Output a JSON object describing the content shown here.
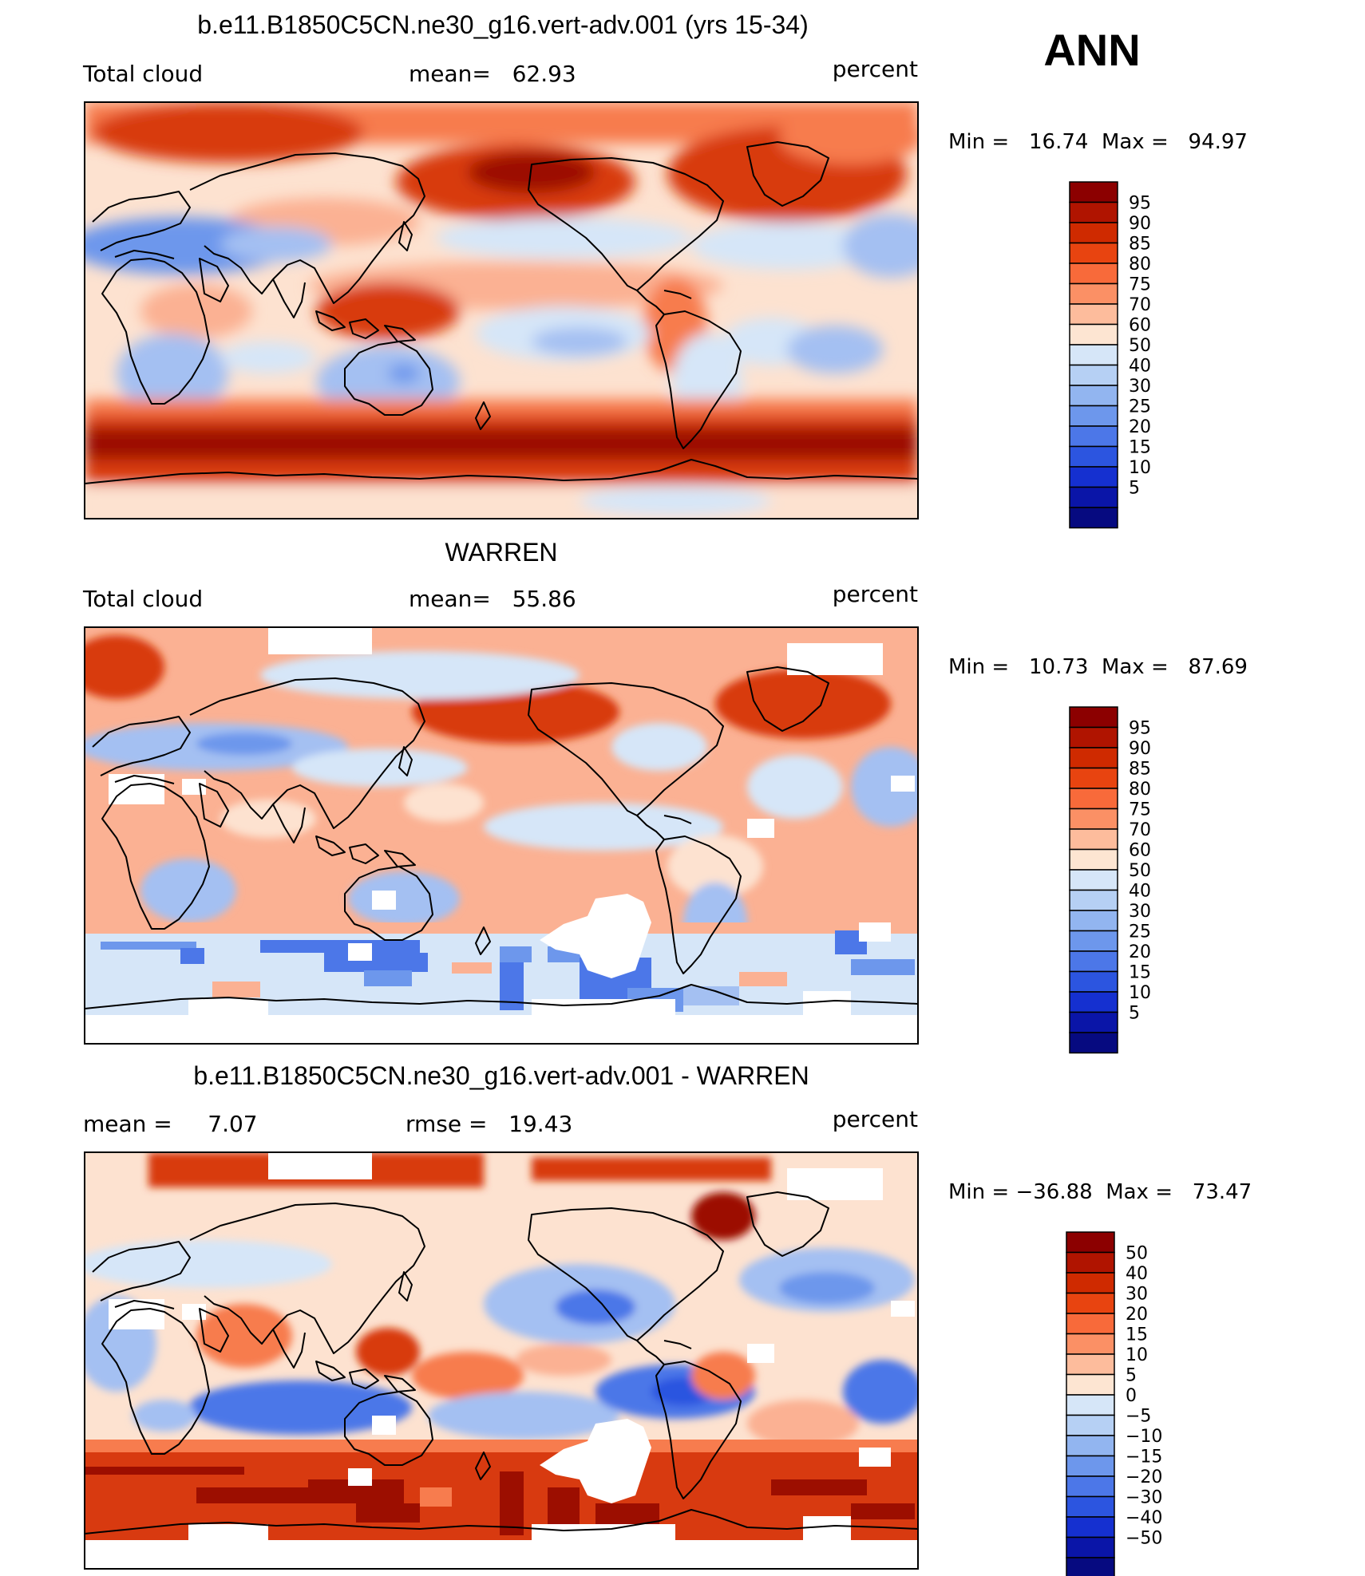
{
  "season": "ANN",
  "panels": [
    {
      "title": "b.e11.B1850C5CN.ne30_g16.vert-adv.001 (yrs 15-34)",
      "left_label": "Total cloud",
      "center_label": "mean=   62.93",
      "right_label": "percent",
      "stats": "Min =   16.74  Max =   94.97",
      "colorbar_labels": [
        "95",
        "90",
        "85",
        "80",
        "75",
        "70",
        "60",
        "50",
        "40",
        "30",
        "25",
        "20",
        "15",
        "10",
        "5"
      ]
    },
    {
      "title": "WARREN",
      "left_label": "Total cloud",
      "center_label": "mean=   55.86",
      "right_label": "percent",
      "stats": "Min =   10.73  Max =   87.69",
      "colorbar_labels": [
        "95",
        "90",
        "85",
        "80",
        "75",
        "70",
        "60",
        "50",
        "40",
        "30",
        "25",
        "20",
        "15",
        "10",
        "5"
      ]
    },
    {
      "title": "b.e11.B1850C5CN.ne30_g16.vert-adv.001 - WARREN",
      "left_label": "mean =     7.07",
      "center_label": "rmse =   19.43",
      "right_label": "percent",
      "stats": "Min = −36.88  Max =   73.47",
      "colorbar_labels": [
        "50",
        "40",
        "30",
        "20",
        "15",
        "10",
        "5",
        "0",
        "−5",
        "−10",
        "−15",
        "−20",
        "−30",
        "−40",
        "−50"
      ]
    }
  ],
  "colorbar_colors": [
    "#8c0000",
    "#b01400",
    "#cf2a00",
    "#e84410",
    "#f86a3a",
    "#fb9065",
    "#fdbc9c",
    "#fde5d2",
    "#d6e6f8",
    "#b6d0f4",
    "#92b5f0",
    "#6d97ec",
    "#4c77e8",
    "#2c55e0",
    "#1530d0",
    "#0a15a8",
    "#060a80"
  ],
  "map_palette": {
    "dark_red": "#9c0e00",
    "red": "#d83a10",
    "orange": "#f77c4e",
    "salmon": "#fbb193",
    "peach": "#fde2d0",
    "light_blue": "#d6e6f8",
    "blue": "#a4c0f2",
    "mid_blue": "#6d97ec",
    "deep_blue": "#2c55e0",
    "missing": "#ffffff"
  }
}
